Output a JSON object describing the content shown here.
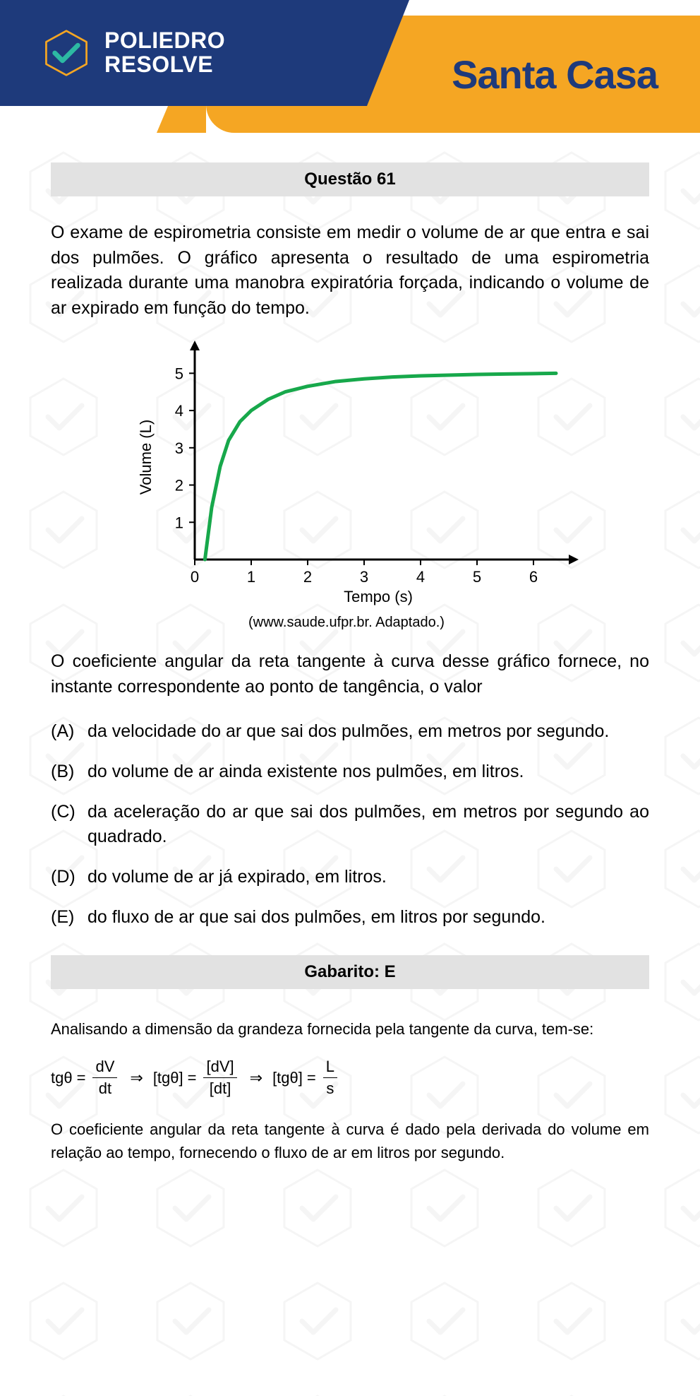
{
  "header": {
    "logo_line1": "POLIEDRO",
    "logo_line2": "RESOLVE",
    "brand": "Santa Casa",
    "blue_color": "#1e3a7b",
    "orange_color": "#f5a623",
    "check_color": "#2db9a3",
    "hex_stroke": "#f5a623"
  },
  "question": {
    "header": "Questão 61",
    "intro": "O exame de espirometria consiste em medir o volume de ar que entra e sai dos pulmões. O gráfico apresenta o resultado de uma espirometria realizada durante uma manobra expiratória forçada, indicando o volume de ar expirado em função do tempo.",
    "prompt": "O coeficiente angular da reta tangente à curva desse gráfico fornece, no instante correspondente ao ponto de tangência, o valor",
    "options": [
      {
        "letter": "(A)",
        "text": "da velocidade do ar que sai dos pulmões, em metros por segundo."
      },
      {
        "letter": "(B)",
        "text": "do volume de ar ainda existente nos pulmões, em litros."
      },
      {
        "letter": "(C)",
        "text": "da aceleração do ar que sai dos pulmões, em metros por segundo ao quadrado."
      },
      {
        "letter": "(D)",
        "text": "do volume de ar já expirado, em litros."
      },
      {
        "letter": "(E)",
        "text": "do fluxo de ar que sai dos pulmões, em litros por segundo."
      }
    ]
  },
  "chart": {
    "type": "line",
    "xlabel": "Tempo (s)",
    "ylabel": "Volume (L)",
    "source": "(www.saude.ufpr.br. Adaptado.)",
    "xlim": [
      0,
      6.5
    ],
    "ylim": [
      0,
      5.5
    ],
    "xtick_labels": [
      "0",
      "1",
      "2",
      "3",
      "4",
      "5",
      "6"
    ],
    "ytick_labels": [
      "1",
      "2",
      "3",
      "4",
      "5"
    ],
    "xtick_values": [
      0,
      1,
      2,
      3,
      4,
      5,
      6
    ],
    "ytick_values": [
      1,
      2,
      3,
      4,
      5
    ],
    "line_color": "#17a84b",
    "line_width": 5,
    "axis_color": "#000000",
    "axis_width": 3,
    "label_fontsize": 22,
    "tick_fontsize": 22,
    "background_color": "#ffffff",
    "data_x": [
      0.18,
      0.3,
      0.45,
      0.6,
      0.8,
      1.0,
      1.3,
      1.6,
      2.0,
      2.5,
      3.0,
      3.5,
      4.0,
      4.5,
      5.0,
      5.5,
      6.0,
      6.4
    ],
    "data_y": [
      0,
      1.4,
      2.5,
      3.2,
      3.7,
      4.0,
      4.3,
      4.5,
      4.65,
      4.78,
      4.85,
      4.9,
      4.93,
      4.95,
      4.97,
      4.98,
      4.99,
      5.0
    ]
  },
  "answer": {
    "header": "Gabarito: E",
    "analysis_intro": "Analisando a dimensão da grandeza fornecida pela tangente da curva, tem-se:",
    "formula": {
      "lhs": "tgθ",
      "eq": "=",
      "f1_num": "dV",
      "f1_den": "dt",
      "imp": "⇒",
      "br_l": "[tgθ]",
      "f2_num": "[dV]",
      "f2_den": "[dt]",
      "f3_num": "L",
      "f3_den": "s"
    },
    "conclusion": "O coeficiente angular da reta tangente à curva é dado pela derivada do volume em relação ao tempo, fornecendo o fluxo de ar em litros por segundo."
  },
  "watermark": {
    "hex_stroke": "#d8d8d8",
    "check_stroke": "#c8c8c8"
  }
}
